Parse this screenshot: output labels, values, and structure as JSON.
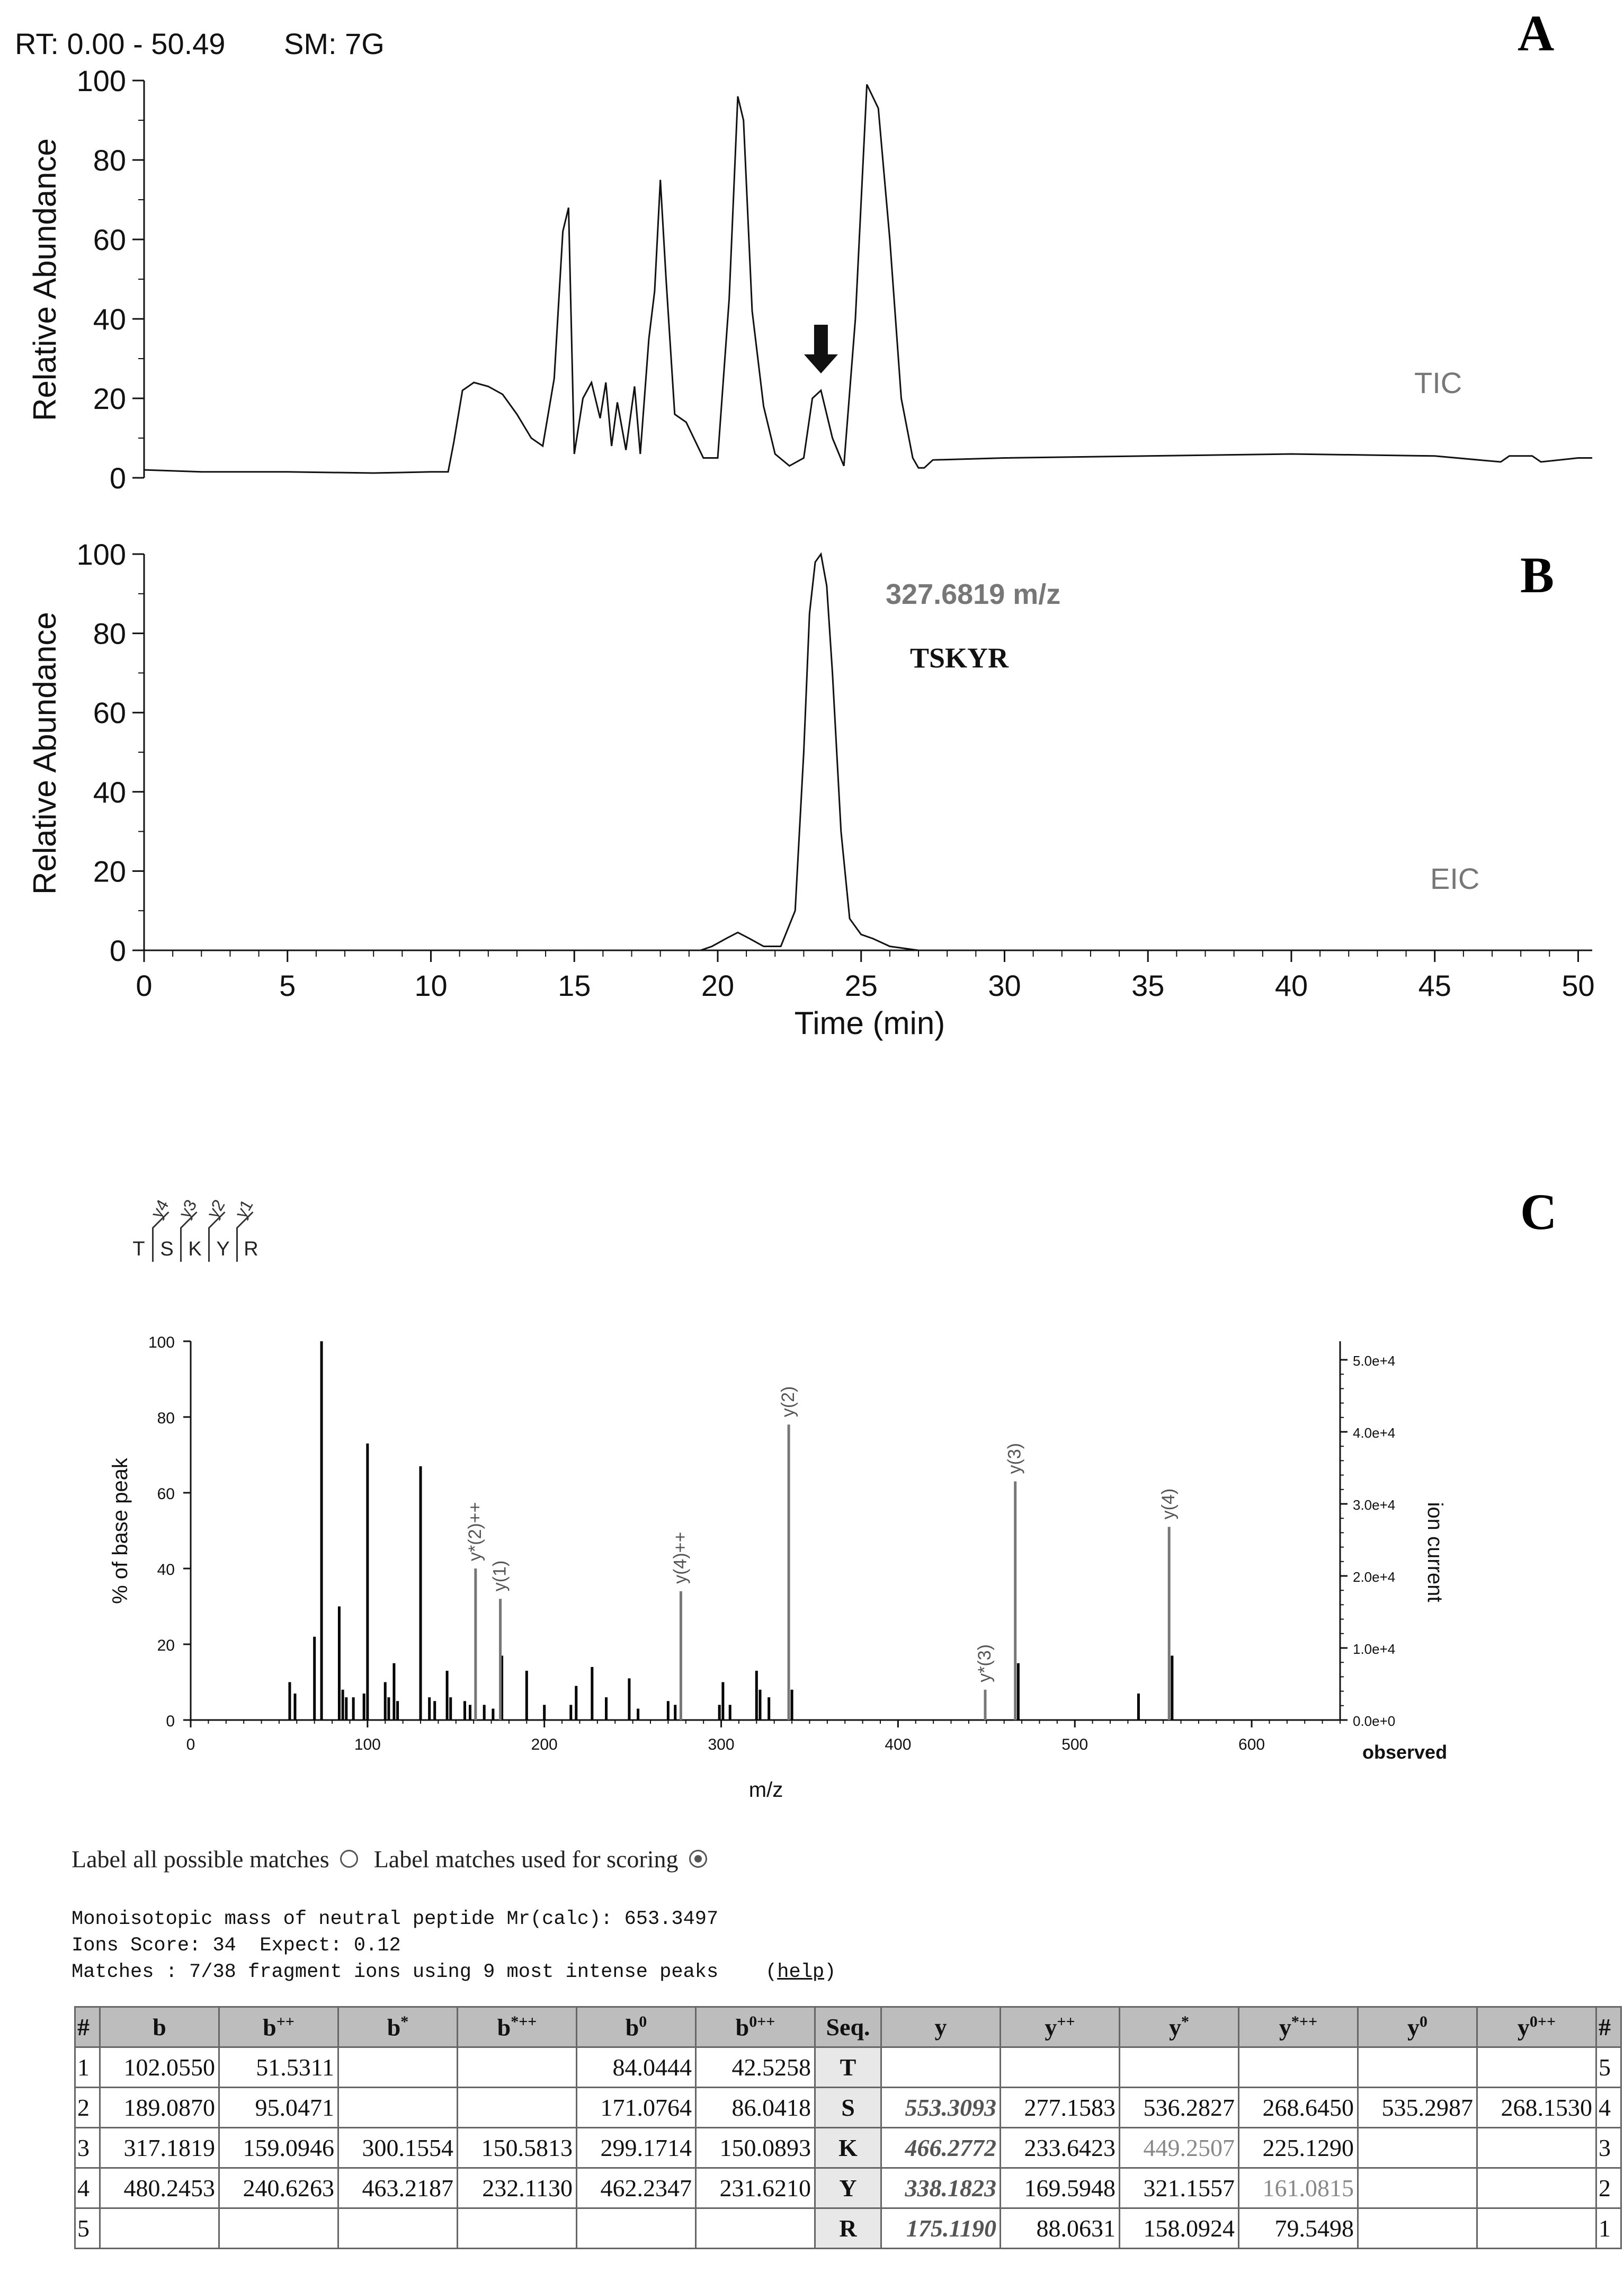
{
  "header": {
    "rt_label": "RT: 0.00 - 50.49",
    "sm_label": "SM: 7G"
  },
  "panels": {
    "a": "A",
    "b": "B",
    "c": "C"
  },
  "chart_data": [
    {
      "type": "line",
      "panel": "A",
      "trace_label": "TIC",
      "ylabel": "Relative Abundance",
      "xlim": [
        0,
        50.49
      ],
      "ylim": [
        0,
        100
      ],
      "yticks": [
        "0",
        "20",
        "40",
        "60",
        "80",
        "100"
      ],
      "x": [
        0,
        2,
        5,
        8,
        10,
        10.6,
        10.8,
        11.1,
        11.5,
        12,
        12.5,
        13,
        13.5,
        13.9,
        14.3,
        14.6,
        14.8,
        15,
        15.3,
        15.6,
        15.9,
        16.1,
        16.3,
        16.5,
        16.8,
        17.1,
        17.3,
        17.6,
        17.8,
        18.0,
        18.2,
        18.5,
        18.9,
        19.5,
        20.0,
        20.4,
        20.7,
        20.9,
        21.2,
        21.6,
        22,
        22.5,
        23.0,
        23.3,
        23.6,
        24.0,
        24.4,
        24.8,
        25.2,
        25.6,
        26.0,
        26.4,
        26.8,
        27.0,
        27.2,
        27.5,
        30,
        35,
        40,
        45,
        47.3,
        47.6,
        48.4,
        48.7,
        50,
        50.49
      ],
      "y": [
        2,
        1.5,
        1.5,
        1.2,
        1.5,
        1.5,
        9,
        22,
        24,
        23,
        21,
        16,
        10,
        8,
        25,
        62,
        68,
        6,
        20,
        24,
        15,
        24,
        8,
        19,
        7,
        23,
        6,
        35,
        47,
        75,
        50,
        16,
        14,
        5,
        5,
        45,
        96,
        90,
        42,
        18,
        6,
        3,
        5,
        20,
        22,
        10,
        3,
        40,
        99,
        93,
        60,
        20,
        5,
        2.5,
        2.5,
        4.5,
        5,
        5.5,
        6,
        5.5,
        4,
        5.5,
        5.5,
        4,
        5,
        5
      ],
      "annotations": [
        {
          "label": "down-arrow",
          "x": 23.6,
          "y": 22
        }
      ]
    },
    {
      "type": "line",
      "panel": "B",
      "trace_label": "EIC",
      "mz_label": "327.6819 m/z",
      "peptide_label": "TSKYR",
      "ylabel": "Relative Abundance",
      "xlabel": "Time (min)",
      "xlim": [
        0,
        50.49
      ],
      "ylim": [
        0,
        100
      ],
      "yticks": [
        "0",
        "20",
        "40",
        "60",
        "80",
        "100"
      ],
      "xticks": [
        "0",
        "5",
        "10",
        "15",
        "20",
        "25",
        "30",
        "35",
        "40",
        "45",
        "50"
      ],
      "x": [
        0,
        19.4,
        19.8,
        20.3,
        20.7,
        21.1,
        21.6,
        22.2,
        22.7,
        23.0,
        23.2,
        23.4,
        23.6,
        23.8,
        24.0,
        24.3,
        24.6,
        25.0,
        25.4,
        26.0,
        27,
        50.49
      ],
      "y": [
        0,
        0,
        1,
        3,
        4.5,
        3,
        1,
        1,
        10,
        50,
        85,
        98,
        100,
        92,
        70,
        30,
        8,
        4,
        3,
        1,
        0,
        0
      ]
    },
    {
      "type": "bar",
      "panel": "C",
      "ylabel": "% of base peak",
      "ylabel_right": "ion current",
      "xlabel": "m/z",
      "observed_label": "observed",
      "xlim": [
        0,
        650
      ],
      "ylim": [
        0,
        100
      ],
      "xticks": [
        "0",
        "100",
        "200",
        "300",
        "400",
        "500",
        "600"
      ],
      "yticks": [
        "0",
        "20",
        "40",
        "60",
        "80",
        "100"
      ],
      "y2ticks": [
        "0.0e+0",
        "1.0e+4",
        "2.0e+4",
        "3.0e+4",
        "4.0e+4",
        "5.0e+4"
      ],
      "peaks": [
        {
          "mz": 56,
          "pct": 10
        },
        {
          "mz": 59,
          "pct": 7
        },
        {
          "mz": 70,
          "pct": 22
        },
        {
          "mz": 74,
          "pct": 100
        },
        {
          "mz": 84,
          "pct": 30
        },
        {
          "mz": 86,
          "pct": 8
        },
        {
          "mz": 88,
          "pct": 6
        },
        {
          "mz": 92,
          "pct": 6
        },
        {
          "mz": 98,
          "pct": 7
        },
        {
          "mz": 100,
          "pct": 73
        },
        {
          "mz": 110,
          "pct": 10
        },
        {
          "mz": 112,
          "pct": 6
        },
        {
          "mz": 115,
          "pct": 15
        },
        {
          "mz": 117,
          "pct": 5
        },
        {
          "mz": 130,
          "pct": 67
        },
        {
          "mz": 135,
          "pct": 6
        },
        {
          "mz": 138,
          "pct": 5
        },
        {
          "mz": 145,
          "pct": 13
        },
        {
          "mz": 147,
          "pct": 6
        },
        {
          "mz": 155,
          "pct": 5
        },
        {
          "mz": 158,
          "pct": 4
        },
        {
          "mz": 166,
          "pct": 4
        },
        {
          "mz": 171,
          "pct": 3
        },
        {
          "mz": 176,
          "pct": 17
        },
        {
          "mz": 190,
          "pct": 13
        },
        {
          "mz": 200,
          "pct": 4
        },
        {
          "mz": 215,
          "pct": 4
        },
        {
          "mz": 218,
          "pct": 9
        },
        {
          "mz": 227,
          "pct": 14
        },
        {
          "mz": 235,
          "pct": 6
        },
        {
          "mz": 248,
          "pct": 11
        },
        {
          "mz": 253,
          "pct": 3
        },
        {
          "mz": 270,
          "pct": 5
        },
        {
          "mz": 274,
          "pct": 4
        },
        {
          "mz": 299,
          "pct": 4
        },
        {
          "mz": 301,
          "pct": 10
        },
        {
          "mz": 305,
          "pct": 4
        },
        {
          "mz": 320,
          "pct": 13
        },
        {
          "mz": 322,
          "pct": 8
        },
        {
          "mz": 327,
          "pct": 6
        },
        {
          "mz": 340,
          "pct": 8
        },
        {
          "mz": 468,
          "pct": 15
        },
        {
          "mz": 536,
          "pct": 7
        },
        {
          "mz": 555,
          "pct": 17
        }
      ],
      "matched": [
        {
          "mz": 161.1,
          "pct": 40,
          "label": "y*(2)++"
        },
        {
          "mz": 175.1,
          "pct": 32,
          "label": "y(1)"
        },
        {
          "mz": 277.2,
          "pct": 34,
          "label": "y(4)++"
        },
        {
          "mz": 338.2,
          "pct": 78,
          "label": "y(2)"
        },
        {
          "mz": 449.3,
          "pct": 8,
          "label": "y*(3)"
        },
        {
          "mz": 466.3,
          "pct": 63,
          "label": "y(3)"
        },
        {
          "mz": 553.3,
          "pct": 51,
          "label": "y(4)"
        }
      ],
      "sequence": [
        "T",
        "S",
        "K",
        "Y",
        "R"
      ],
      "sequence_ions": [
        "y4",
        "y3",
        "y2",
        "y1"
      ]
    }
  ],
  "options": {
    "all_label": "Label all possible matches",
    "scoring_label": "Label matches used for scoring",
    "selected": "scoring"
  },
  "summary": {
    "line1": "Monoisotopic mass of neutral peptide Mr(calc): 653.3497",
    "line2": "Ions Score: 34  Expect: 0.12",
    "line3": "Matches : 7/38 fragment ions using 9 most intense peaks",
    "help": "help"
  },
  "table": {
    "headers": [
      "#",
      "b",
      "b++",
      "b*",
      "b*++",
      "b0",
      "b0++",
      "Seq.",
      "y",
      "y++",
      "y*",
      "y*++",
      "y0",
      "y0++",
      "#"
    ],
    "rows": [
      [
        "1",
        "102.0550",
        "51.5311",
        "",
        "",
        "84.0444",
        "42.5258",
        "T",
        "",
        "",
        "",
        "",
        "",
        "",
        "5"
      ],
      [
        "2",
        "189.0870",
        "95.0471",
        "",
        "",
        "171.0764",
        "86.0418",
        "S",
        "553.3093",
        "277.1583",
        "536.2827",
        "268.6450",
        "535.2987",
        "268.1530",
        "4"
      ],
      [
        "3",
        "317.1819",
        "159.0946",
        "300.1554",
        "150.5813",
        "299.1714",
        "150.0893",
        "K",
        "466.2772",
        "233.6423",
        "449.2507",
        "225.1290",
        "",
        "",
        "3"
      ],
      [
        "4",
        "480.2453",
        "240.6263",
        "463.2187",
        "232.1130",
        "462.2347",
        "231.6210",
        "Y",
        "338.1823",
        "169.5948",
        "321.1557",
        "161.0815",
        "",
        "",
        "2"
      ],
      [
        "5",
        "",
        "",
        "",
        "",
        "",
        "",
        "R",
        "175.1190",
        "88.0631",
        "158.0924",
        "79.5498",
        "",
        "",
        "1"
      ]
    ],
    "used_cells": [
      "r1c8",
      "r2c8",
      "r3c8",
      "r4c8"
    ],
    "gray_cells": [
      "r2c10",
      "r3c11"
    ]
  }
}
